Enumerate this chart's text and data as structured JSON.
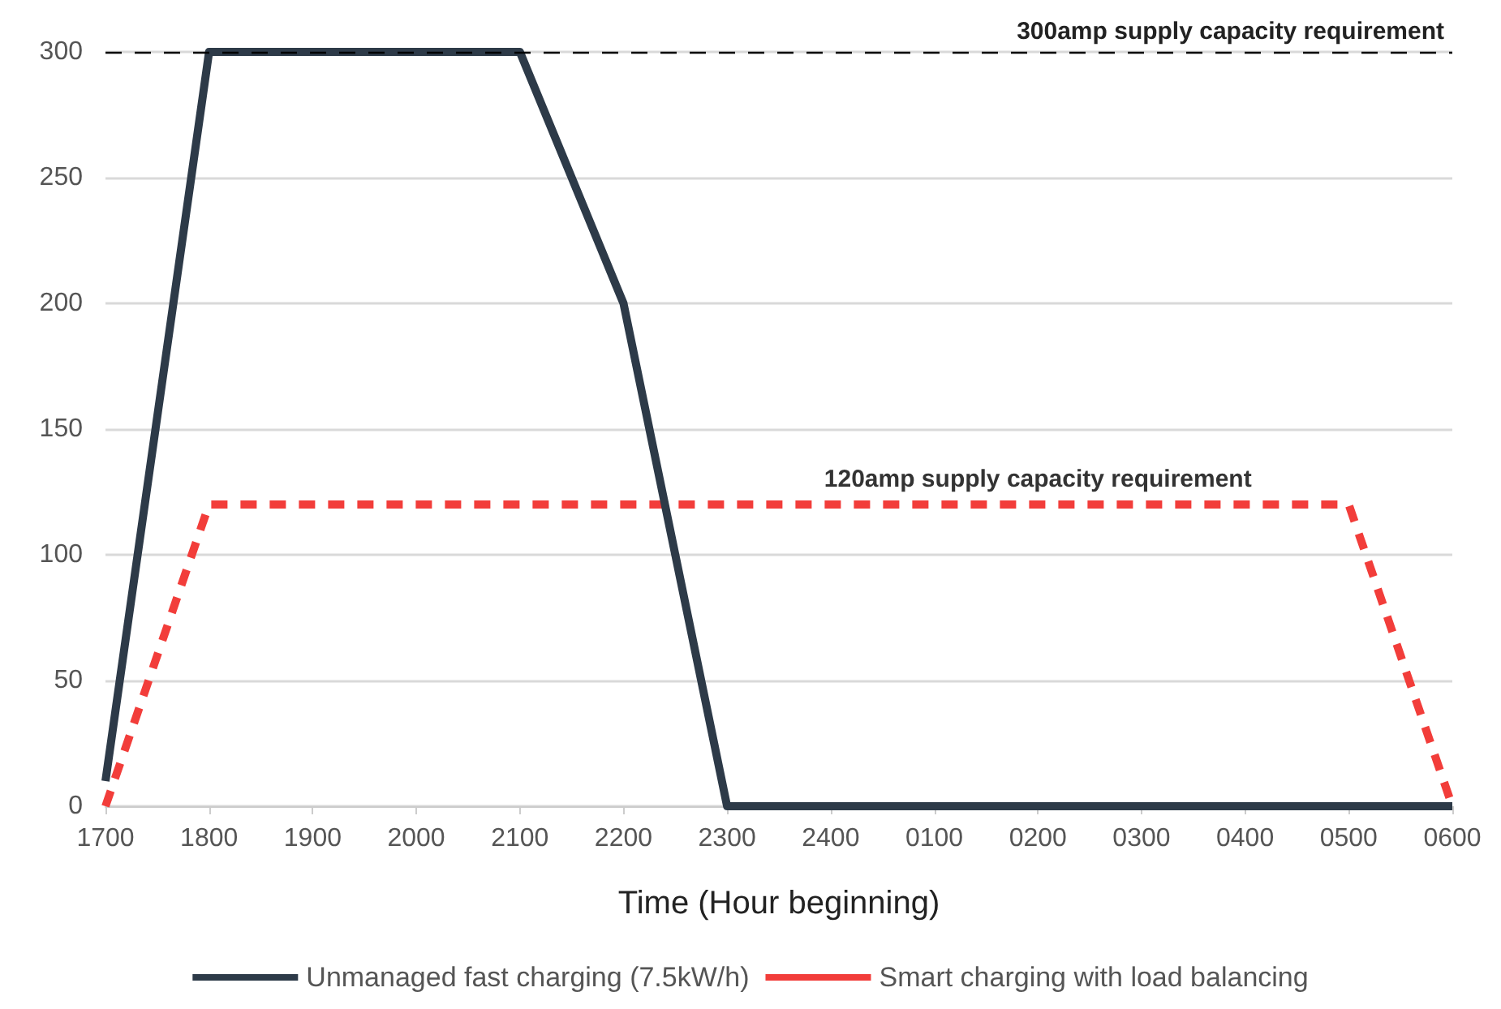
{
  "chart_data": {
    "type": "line",
    "xlabel": "Time (Hour beginning)",
    "categories": [
      "1700",
      "1800",
      "1900",
      "2000",
      "2100",
      "2200",
      "2300",
      "2400",
      "0100",
      "0200",
      "0300",
      "0400",
      "0500",
      "0600"
    ],
    "series": [
      {
        "name": "Unmanaged fast charging (7.5kW/h)",
        "color": "#2d3a48",
        "line_style": "solid",
        "values": [
          10,
          300,
          300,
          300,
          300,
          200,
          0,
          0,
          0,
          0,
          0,
          0,
          0,
          0
        ]
      },
      {
        "name": "Smart charging with load balancing",
        "color": "#f23d3a",
        "line_style": "dashed",
        "values": [
          0,
          120,
          120,
          120,
          120,
          120,
          120,
          120,
          120,
          120,
          120,
          120,
          120,
          0
        ]
      }
    ],
    "ylim": [
      0,
      300
    ],
    "yticks": [
      0,
      50,
      100,
      150,
      200,
      250,
      300
    ],
    "grid": "y",
    "legend": "bottom",
    "marker": "none",
    "ref_lines": [
      {
        "axis": "y",
        "value": 300,
        "label": "300amp supply capacity requirement",
        "color": "#000000",
        "line_style": "dashed"
      }
    ],
    "annotations": [
      {
        "text": "120amp supply capacity requirement",
        "x": "0200",
        "y": 120
      }
    ]
  }
}
